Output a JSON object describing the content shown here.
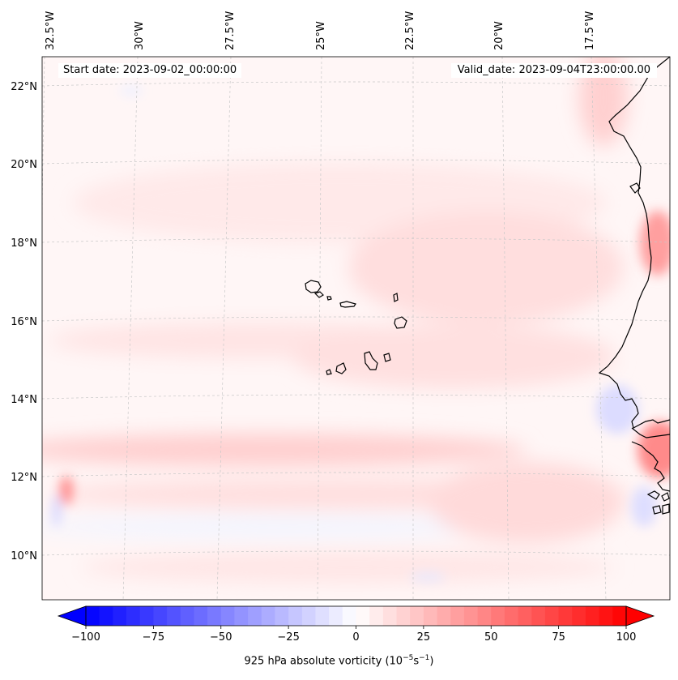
{
  "map": {
    "title_left": "Start date: 2023-09-02_00:00:00",
    "title_right": "Valid_date: 2023-09-04T23:00:00.00",
    "lon_labels": [
      "32.5°W",
      "30°W",
      "27.5°W",
      "25°W",
      "22.5°W",
      "20°W",
      "17.5°W"
    ],
    "lat_labels": [
      "22°N",
      "20°N",
      "18°N",
      "16°N",
      "14°N",
      "12°N",
      "10°N"
    ],
    "gridlines": true,
    "coastline_color": "#000000",
    "features": [
      "Cape Verde islands",
      "West African coast (Senegal, Gambia, Guinea-Bissau)"
    ]
  },
  "colorbar": {
    "label_prefix": "925 hPa absolute vorticity (10",
    "label_exp1": "−5",
    "label_mid": "s",
    "label_exp2": "−1",
    "label_suffix": ")",
    "tick_labels": [
      "−100",
      "−75",
      "−50",
      "−25",
      "0",
      "25",
      "50",
      "75",
      "100"
    ],
    "min": -100,
    "max": 100,
    "step": 5,
    "colormap": "bwr",
    "color_low": "#0000ff",
    "color_mid": "#ffffff",
    "color_high": "#ff0000"
  }
}
